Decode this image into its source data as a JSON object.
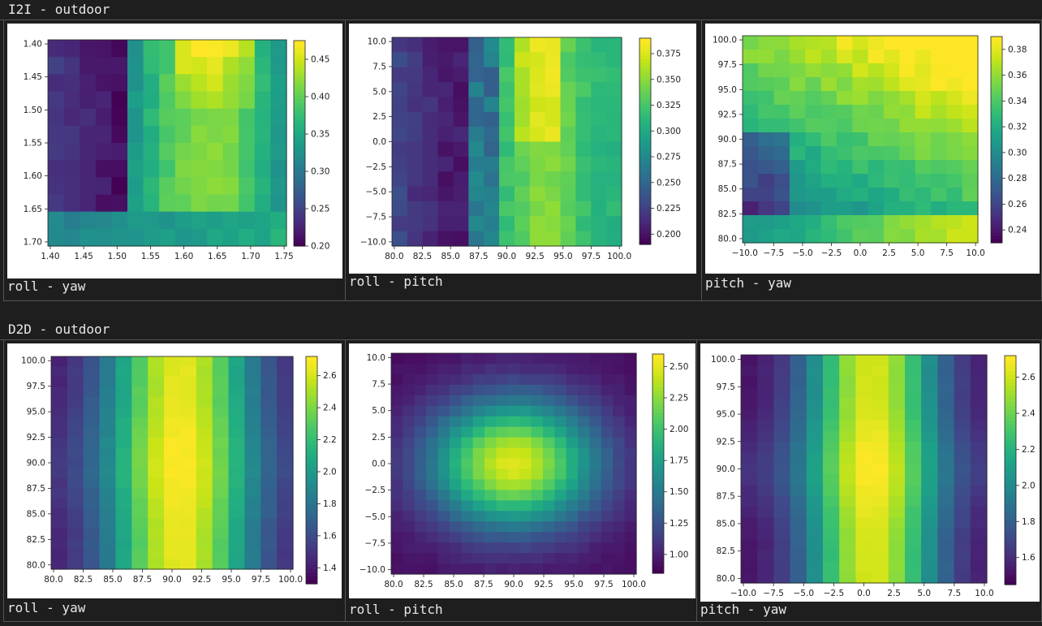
{
  "sections": [
    {
      "title": "I2I - outdoor",
      "panels": [
        {
          "caption": "roll - yaw",
          "chart_data": {
            "type": "heatmap",
            "xlabel": "",
            "ylabel": "",
            "xticks": [
              "1.40",
              "1.45",
              "1.50",
              "1.55",
              "1.60",
              "1.65",
              "1.70",
              "1.75"
            ],
            "yticks": [
              "1.40",
              "1.45",
              "1.50",
              "1.55",
              "1.60",
              "1.65",
              "1.70"
            ],
            "colorbar_ticks": [
              "0.20",
              "0.25",
              "0.30",
              "0.35",
              "0.40",
              "0.45"
            ],
            "vmin": 0.2,
            "vmax": 0.475,
            "rows": 12,
            "cols": 15,
            "pattern": "i2i_roll_yaw"
          }
        },
        {
          "caption": "roll - pitch",
          "chart_data": {
            "type": "heatmap",
            "xlabel": "",
            "ylabel": "",
            "xticks": [
              "80.0",
              "82.5",
              "85.0",
              "87.5",
              "90.0",
              "92.5",
              "95.0",
              "97.5",
              "100.0"
            ],
            "yticks": [
              "10.0",
              "7.5",
              "5.0",
              "2.5",
              "0.0",
              "−2.5",
              "−5.0",
              "−7.5",
              "−10.0"
            ],
            "colorbar_ticks": [
              "0.200",
              "0.225",
              "0.250",
              "0.275",
              "0.300",
              "0.325",
              "0.350",
              "0.375"
            ],
            "vmin": 0.19,
            "vmax": 0.39,
            "rows": 14,
            "cols": 15,
            "pattern": "i2i_roll_pitch"
          }
        },
        {
          "caption": "pitch - yaw",
          "chart_data": {
            "type": "heatmap",
            "xlabel": "",
            "ylabel": "",
            "xticks": [
              "−10.0",
              "−7.5",
              "−5.0",
              "−2.5",
              "0.0",
              "2.5",
              "5.0",
              "7.5",
              "10.0"
            ],
            "yticks": [
              "100.0",
              "97.5",
              "95.0",
              "92.5",
              "90.0",
              "87.5",
              "85.0",
              "82.5",
              "80.0"
            ],
            "colorbar_ticks": [
              "0.24",
              "0.26",
              "0.28",
              "0.30",
              "0.32",
              "0.34",
              "0.36",
              "0.38"
            ],
            "vmin": 0.23,
            "vmax": 0.39,
            "rows": 15,
            "cols": 15,
            "pattern": "i2i_pitch_yaw"
          }
        }
      ]
    },
    {
      "title": "D2D - outdoor",
      "panels": [
        {
          "caption": "roll - yaw",
          "chart_data": {
            "type": "heatmap",
            "xlabel": "",
            "ylabel": "",
            "xticks": [
              "80.0",
              "82.5",
              "85.0",
              "87.5",
              "90.0",
              "92.5",
              "95.0",
              "97.5",
              "100.0"
            ],
            "yticks": [
              "100.0",
              "97.5",
              "95.0",
              "92.5",
              "90.0",
              "87.5",
              "85.0",
              "82.5",
              "80.0"
            ],
            "colorbar_ticks": [
              "1.4",
              "1.6",
              "1.8",
              "2.0",
              "2.2",
              "2.4",
              "2.6"
            ],
            "vmin": 1.3,
            "vmax": 2.72,
            "rows": 21,
            "cols": 15,
            "pattern": "d2d_roll_yaw"
          }
        },
        {
          "caption": "roll - pitch",
          "chart_data": {
            "type": "heatmap",
            "xlabel": "",
            "ylabel": "",
            "xticks": [
              "80.0",
              "82.5",
              "85.0",
              "87.5",
              "90.0",
              "92.5",
              "95.0",
              "97.5",
              "100.0"
            ],
            "yticks": [
              "10.0",
              "7.5",
              "5.0",
              "2.5",
              "0.0",
              "−2.5",
              "−5.0",
              "−7.5",
              "−10.0"
            ],
            "colorbar_ticks": [
              "1.00",
              "1.25",
              "1.50",
              "1.75",
              "2.00",
              "2.25",
              "2.50"
            ],
            "vmin": 0.85,
            "vmax": 2.6,
            "rows": 21,
            "cols": 21,
            "pattern": "d2d_roll_pitch"
          }
        },
        {
          "caption": "pitch - yaw",
          "chart_data": {
            "type": "heatmap",
            "xlabel": "",
            "ylabel": "",
            "xticks": [
              "−10.0",
              "−7.5",
              "−5.0",
              "−2.5",
              "0.0",
              "2.5",
              "5.0",
              "7.5",
              "10.0"
            ],
            "yticks": [
              "100.0",
              "97.5",
              "95.0",
              "92.5",
              "90.0",
              "87.5",
              "85.0",
              "82.5",
              "80.0"
            ],
            "colorbar_ticks": [
              "1.6",
              "1.8",
              "2.0",
              "2.2",
              "2.4",
              "2.6"
            ],
            "vmin": 1.45,
            "vmax": 2.72,
            "rows": 21,
            "cols": 15,
            "pattern": "d2d_pitch_yaw"
          }
        }
      ]
    }
  ]
}
